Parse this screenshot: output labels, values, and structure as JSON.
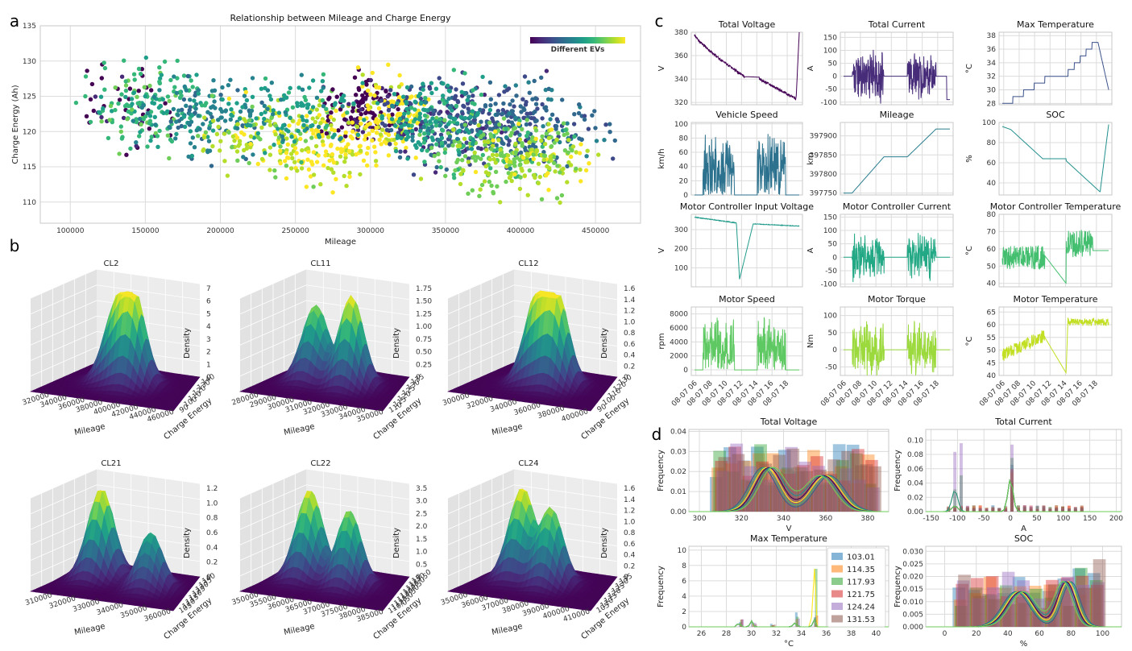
{
  "colors": {
    "viridis": [
      "#440154",
      "#482878",
      "#3e4989",
      "#31688e",
      "#26828e",
      "#1f9e89",
      "#35b779",
      "#6ece58",
      "#b5de2b",
      "#fde725"
    ]
  },
  "panels": {
    "a": {
      "label": "a",
      "chart_data": {
        "type": "scatter",
        "title": "Relationship between Mileage and Charge Energy",
        "xlabel": "Mileage",
        "ylabel": "Charge Energy (Ah)",
        "xlim": [
          80000,
          480000
        ],
        "ylim": [
          107,
          135
        ],
        "xticks": [
          100000,
          150000,
          200000,
          250000,
          300000,
          350000,
          400000,
          450000
        ],
        "yticks": [
          110,
          115,
          120,
          125,
          130,
          135
        ],
        "colorbar_label": "Different EVs",
        "grid": true,
        "groups": [
          {
            "x_range": [
              100000,
              175000
            ],
            "y_range": [
              115,
              131
            ],
            "color_index": 0,
            "count": 40
          },
          {
            "x_range": [
              100000,
              200000
            ],
            "y_range": [
              114,
              133
            ],
            "color_index": 6,
            "count": 150
          },
          {
            "x_range": [
              130000,
              250000
            ],
            "y_range": [
              113,
              131
            ],
            "color_index": 4,
            "count": 150
          },
          {
            "x_range": [
              180000,
              300000
            ],
            "y_range": [
              111,
              128
            ],
            "color_index": 8,
            "count": 160
          },
          {
            "x_range": [
              260000,
              330000
            ],
            "y_range": [
              116,
              130
            ],
            "color_index": 0,
            "count": 120
          },
          {
            "x_range": [
              280000,
              340000
            ],
            "y_range": [
              113,
              131
            ],
            "color_index": 9,
            "count": 130
          },
          {
            "x_range": [
              230000,
              310000
            ],
            "y_range": [
              110,
              125
            ],
            "color_index": 9,
            "count": 110
          },
          {
            "x_range": [
              300000,
              420000
            ],
            "y_range": [
              112,
              130
            ],
            "color_index": 2,
            "count": 220
          },
          {
            "x_range": [
              330000,
              470000
            ],
            "y_range": [
              113,
              129
            ],
            "color_index": 3,
            "count": 200
          },
          {
            "x_range": [
              330000,
              440000
            ],
            "y_range": [
              110,
              124
            ],
            "color_index": 7,
            "count": 180
          },
          {
            "x_range": [
              350000,
              460000
            ],
            "y_range": [
              109,
              122
            ],
            "color_index": 8,
            "count": 120
          },
          {
            "x_range": [
              300000,
              380000
            ],
            "y_range": [
              114,
              130
            ],
            "color_index": 5,
            "count": 150
          },
          {
            "x_range": [
              200000,
              300000
            ],
            "y_range": [
              115,
              130
            ],
            "color_index": 5,
            "count": 110
          }
        ]
      }
    },
    "b": {
      "label": "b",
      "chart_data": [
        {
          "type": "surface",
          "title": "CL2",
          "xlabel": "Mileage",
          "ylabel": "Charge Energy",
          "zlabel": "Density",
          "xticks": [
            "320000",
            "340000",
            "360000",
            "380000",
            "400000",
            "420000",
            "440000",
            "460000"
          ],
          "yticks": [
            "90",
            "100",
            "110",
            "120",
            "130",
            "140"
          ],
          "zticks": [
            "0",
            "1",
            "2",
            "3",
            "4",
            "5",
            "6",
            "7"
          ],
          "zmax": 7,
          "peaks": [
            [
              0.38,
              0.62,
              0.78
            ],
            [
              0.55,
              0.55,
              1.0
            ]
          ]
        },
        {
          "type": "surface",
          "title": "CL11",
          "xlabel": "Mileage",
          "ylabel": "Charge Energy",
          "zlabel": "Density",
          "xticks": [
            "280000",
            "290000",
            "300000",
            "310000",
            "320000",
            "330000",
            "340000",
            "350000"
          ],
          "yticks": [
            "110",
            "115",
            "120",
            "125",
            "130",
            "135"
          ],
          "zticks": [
            "0",
            "0.25",
            "0.50",
            "0.75",
            "1.00",
            "1.25",
            "1.50",
            "1.75"
          ],
          "zmax": 1.75,
          "peaks": [
            [
              0.3,
              0.6,
              0.82
            ],
            [
              0.62,
              0.55,
              1.0
            ]
          ]
        },
        {
          "type": "surface",
          "title": "CL12",
          "xlabel": "Mileage",
          "ylabel": "Charge Energy",
          "zlabel": "Density",
          "xticks": [
            "300000",
            "320000",
            "340000",
            "360000",
            "380000",
            "400000"
          ],
          "yticks": [
            "90",
            "100",
            "110",
            "120",
            "130"
          ],
          "zticks": [
            "0",
            "0.2",
            "0.4",
            "0.6",
            "0.8",
            "1.0",
            "1.2",
            "1.4",
            "1.6"
          ],
          "zmax": 1.6,
          "peaks": [
            [
              0.42,
              0.6,
              0.95
            ],
            [
              0.6,
              0.55,
              1.0
            ]
          ]
        },
        {
          "type": "surface",
          "title": "CL21",
          "xlabel": "Mileage",
          "ylabel": "Charge Energy",
          "zlabel": "Density",
          "xticks": [
            "310000",
            "320000",
            "330000",
            "340000",
            "350000",
            "360000"
          ],
          "yticks": [
            "105",
            "110",
            "115",
            "120",
            "125",
            "130",
            "135",
            "140"
          ],
          "zticks": [
            "0",
            "0.2",
            "0.4",
            "0.6",
            "0.8",
            "1.0",
            "1.2"
          ],
          "zmax": 1.2,
          "peaks": [
            [
              0.25,
              0.62,
              1.0
            ],
            [
              0.7,
              0.52,
              0.62
            ]
          ]
        },
        {
          "type": "surface",
          "title": "CL22",
          "xlabel": "Mileage",
          "ylabel": "Charge Energy",
          "zlabel": "Density",
          "xticks": [
            "350000",
            "355000",
            "360000",
            "365000",
            "370000",
            "375000",
            "380000",
            "385000"
          ],
          "yticks": [
            "110.0",
            "112.5",
            "115.0",
            "117.5",
            "120.0",
            "122.5",
            "125.0",
            "127.5",
            "130.0"
          ],
          "zticks": [
            "0",
            "0.5",
            "1.0",
            "1.5",
            "2.0",
            "2.5",
            "3.0",
            "3.5"
          ],
          "zmax": 3.5,
          "peaks": [
            [
              0.25,
              0.6,
              1.0
            ],
            [
              0.6,
              0.55,
              0.85
            ]
          ]
        },
        {
          "type": "surface",
          "title": "CL24",
          "xlabel": "Mileage",
          "ylabel": "Charge Energy",
          "zlabel": "Density",
          "xticks": [
            "350000",
            "360000",
            "370000",
            "380000",
            "390000",
            "400000",
            "410000"
          ],
          "yticks": [
            "105",
            "110",
            "115",
            "120",
            "125",
            "130",
            "135"
          ],
          "zticks": [
            "0",
            "0.2",
            "0.4",
            "0.6",
            "0.8",
            "1.0",
            "1.2",
            "1.4",
            "1.6"
          ],
          "zmax": 1.6,
          "peaks": [
            [
              0.28,
              0.62,
              1.0
            ],
            [
              0.55,
              0.55,
              0.85
            ]
          ]
        }
      ]
    },
    "c": {
      "label": "c",
      "chart_data": [
        {
          "type": "line",
          "title": "Total Voltage",
          "ylabel": "V",
          "ylim": [
            318,
            380
          ],
          "yticks": [
            "320",
            "340",
            "360",
            "380"
          ],
          "color": "#440154",
          "kind": "voltage"
        },
        {
          "type": "line",
          "title": "Total Current",
          "ylabel": "A",
          "ylim": [
            -110,
            170
          ],
          "yticks": [
            "-100",
            "-50",
            "0",
            "50",
            "100",
            "150"
          ],
          "color": "#472c7a",
          "kind": "current"
        },
        {
          "type": "line",
          "title": "Max Temperature",
          "ylabel": "°C",
          "ylim": [
            27.8,
            38.5
          ],
          "yticks": [
            "28",
            "30",
            "32",
            "34",
            "36",
            "38"
          ],
          "color": "#3b518b",
          "kind": "maxtemp"
        },
        {
          "type": "line",
          "title": "Vehicle Speed",
          "ylabel": "km/h",
          "ylim": [
            0,
            102
          ],
          "yticks": [
            "0",
            "20",
            "40",
            "60",
            "80",
            "100"
          ],
          "color": "#2c728e",
          "kind": "speed"
        },
        {
          "type": "line",
          "title": "Mileage",
          "ylabel": "km",
          "ylim": [
            397745,
            397935
          ],
          "yticks": [
            "397750",
            "397800",
            "397850",
            "397900"
          ],
          "color": "#287d8e",
          "kind": "mileage"
        },
        {
          "type": "line",
          "title": "SOC",
          "ylabel": "%",
          "ylim": [
            28,
            100
          ],
          "yticks": [
            "40",
            "60",
            "80",
            "100"
          ],
          "color": "#21908d",
          "kind": "soc"
        },
        {
          "type": "line",
          "title": "Motor Controller Input Voltage",
          "ylabel": "V",
          "ylim": [
            0,
            380
          ],
          "yticks": [
            "100",
            "200",
            "300"
          ],
          "color": "#1f9a8a",
          "kind": "mcvolt"
        },
        {
          "type": "line",
          "title": "Motor Controller Current",
          "ylabel": "A",
          "ylim": [
            -110,
            160
          ],
          "yticks": [
            "-100",
            "-50",
            "0",
            "50",
            "100",
            "150"
          ],
          "color": "#22a884",
          "kind": "mccur"
        },
        {
          "type": "line",
          "title": "Motor Controller Temperature",
          "ylabel": "°C",
          "ylim": [
            38,
            80
          ],
          "yticks": [
            "40",
            "50",
            "60",
            "70",
            "80"
          ],
          "color": "#44bf70",
          "kind": "mctemp"
        },
        {
          "type": "line",
          "title": "Motor Speed",
          "ylabel": "rpm",
          "ylim": [
            -800,
            9000
          ],
          "yticks": [
            "0",
            "2000",
            "4000",
            "6000",
            "8000"
          ],
          "color": "#5ec962",
          "kind": "mspeed"
        },
        {
          "type": "line",
          "title": "Motor Torque",
          "ylabel": "Nm",
          "ylim": [
            -75,
            125
          ],
          "yticks": [
            "-50",
            "0",
            "50",
            "100"
          ],
          "color": "#9bd93c",
          "kind": "torque"
        },
        {
          "type": "line",
          "title": "Motor Temperature",
          "ylabel": "°C",
          "ylim": [
            40,
            67
          ],
          "yticks": [
            "40",
            "45",
            "50",
            "55",
            "60",
            "65"
          ],
          "color": "#c2df23",
          "kind": "mtemp"
        }
      ],
      "xticks": [
        "08-07 06",
        "08-07 08",
        "08-07 10",
        "08-07 12",
        "08-07 14",
        "08-07 16",
        "08-07 18"
      ]
    },
    "d": {
      "label": "d",
      "legend": [
        "103.01",
        "114.35",
        "117.93",
        "121.75",
        "124.24",
        "131.53"
      ],
      "legend_colors": [
        "#1f77b4",
        "#ff7f0e",
        "#2ca02c",
        "#d62728",
        "#9467bd",
        "#8c564b"
      ],
      "kde_colors": [
        "#31688e",
        "#35b779",
        "#fde725",
        "#440154",
        "#21908d",
        "#6ece58"
      ],
      "chart_data": [
        {
          "type": "histogram",
          "title": "Total Voltage",
          "xlabel": "V",
          "ylabel": "Frequency",
          "xlim": [
            295,
            390
          ],
          "ylim": [
            0,
            0.041
          ],
          "xticks": [
            "300",
            "320",
            "340",
            "360",
            "380"
          ],
          "yticks": [
            "0.00",
            "0.01",
            "0.02",
            "0.03",
            "0.04"
          ],
          "kind": "tv"
        },
        {
          "type": "histogram",
          "title": "Total Current",
          "xlabel": "A",
          "ylabel": "Frequency",
          "xlim": [
            -160,
            210
          ],
          "ylim": [
            0,
            0.115
          ],
          "xticks": [
            "-150",
            "-100",
            "-50",
            "0",
            "50",
            "100",
            "150",
            "200"
          ],
          "yticks": [
            "0.00",
            "0.02",
            "0.04",
            "0.06",
            "0.08",
            "0.10"
          ],
          "kind": "tc"
        },
        {
          "type": "histogram",
          "title": "Max Temperature",
          "xlabel": "°C",
          "ylabel": "Frequency",
          "xlim": [
            25,
            41
          ],
          "ylim": [
            0,
            10.5
          ],
          "xticks": [
            "26",
            "28",
            "30",
            "32",
            "34",
            "36",
            "38",
            "40"
          ],
          "yticks": [
            "0",
            "2",
            "4",
            "6",
            "8",
            "10"
          ],
          "kind": "mt"
        },
        {
          "type": "histogram",
          "title": "SOC",
          "xlabel": "%",
          "ylabel": "Frequency",
          "xlim": [
            -12,
            112
          ],
          "ylim": [
            0,
            0.032
          ],
          "xticks": [
            "0",
            "20",
            "40",
            "60",
            "80",
            "100"
          ],
          "yticks": [
            "0.000",
            "0.005",
            "0.010",
            "0.015",
            "0.020",
            "0.025",
            "0.030"
          ],
          "kind": "soc"
        }
      ]
    }
  }
}
